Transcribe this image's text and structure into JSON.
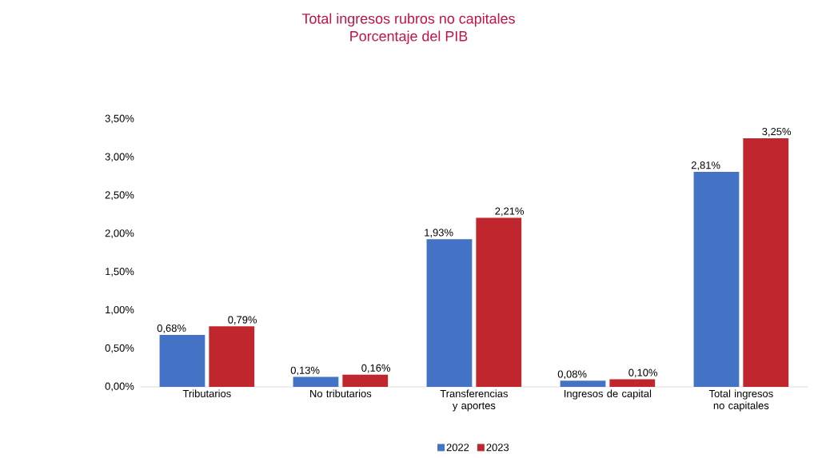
{
  "chart_data": {
    "type": "bar",
    "title": "Total ingresos rubros no capitales",
    "subtitle": "Porcentaje del PIB",
    "categories": [
      "Tributarios",
      "No tributarios",
      "Transferencias y aportes",
      "Ingresos de capital",
      "Total ingresos no capitales"
    ],
    "series": [
      {
        "name": "2022",
        "color": "#4472c4",
        "values": [
          0.68,
          0.13,
          1.93,
          0.08,
          2.81
        ],
        "value_labels": [
          "0,68%",
          "0,13%",
          "1,93%",
          "0,08%",
          "2,81%"
        ]
      },
      {
        "name": "2023",
        "color": "#c0262d",
        "values": [
          0.79,
          0.16,
          2.21,
          0.1,
          3.25
        ],
        "value_labels": [
          "0,79%",
          "0,16%",
          "2,21%",
          "0,10%",
          "3,25%"
        ]
      }
    ],
    "ylim": [
      0,
      3.5
    ],
    "yticks": [
      {
        "value": 0,
        "label": "0,00%"
      },
      {
        "value": 0.5,
        "label": "0,50%"
      },
      {
        "value": 1,
        "label": "1,00%"
      },
      {
        "value": 1.5,
        "label": "1,50%"
      },
      {
        "value": 2,
        "label": "2,00%"
      },
      {
        "value": 2.5,
        "label": "2,50%"
      },
      {
        "value": 3,
        "label": "3,00%"
      },
      {
        "value": 3.5,
        "label": "3,50%"
      }
    ],
    "grid": false,
    "legend": "bottom"
  }
}
